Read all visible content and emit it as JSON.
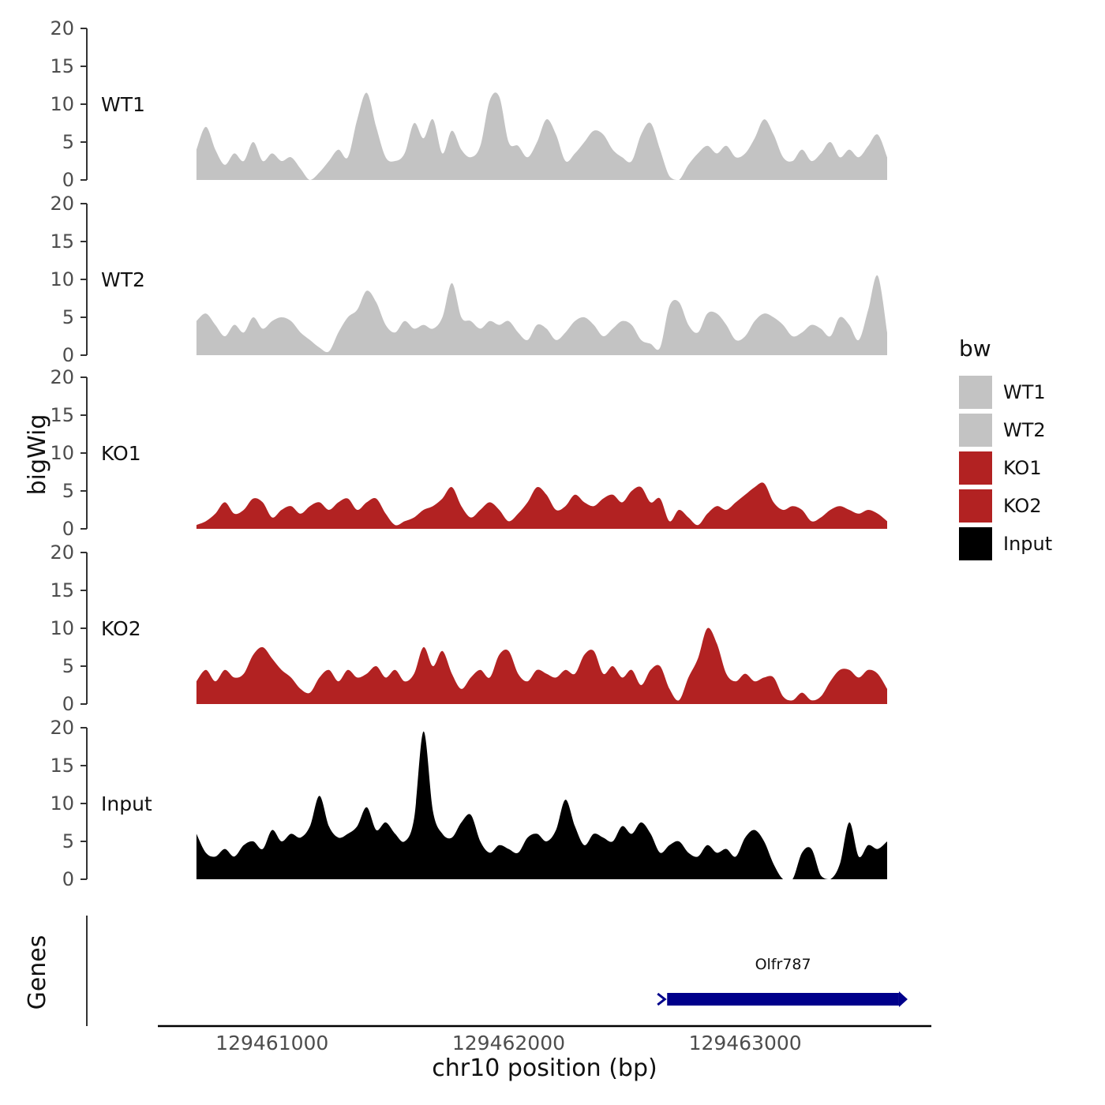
{
  "labels": {
    "bigwig": "bigWig",
    "genes": "Genes"
  },
  "axis": {
    "x_title": "chr10 position (bp)",
    "x_domain": [
      129460517,
      129463787
    ],
    "x_ticks": [
      {
        "value": 129461000,
        "label": "129461000"
      },
      {
        "value": 129462000,
        "label": "129462000"
      },
      {
        "value": 129463000,
        "label": "129463000"
      }
    ],
    "y_domain": [
      0,
      20
    ],
    "y_ticks": [
      0,
      5,
      10,
      15,
      20
    ]
  },
  "legend": {
    "title": "bw",
    "items": [
      {
        "label": "WT1",
        "color": "#c3c3c3"
      },
      {
        "label": "WT2",
        "color": "#c3c3c3"
      },
      {
        "label": "KO1",
        "color": "#b22222"
      },
      {
        "label": "KO2",
        "color": "#b22222"
      },
      {
        "label": "Input",
        "color": "#000000"
      }
    ]
  },
  "chart_data": {
    "type": "area",
    "title": "",
    "xlabel": "chr10 position (bp)",
    "ylabel": "bigWig",
    "x_start": 129460680,
    "x_step": 40,
    "x_ticks": [
      129461000,
      129462000,
      129463000
    ],
    "ylim": [
      0,
      20
    ],
    "grid": false,
    "legend_position": "right",
    "tracks": [
      {
        "name": "WT1",
        "color": "#c3c3c3",
        "values": [
          4,
          7,
          4,
          2,
          3.5,
          2.5,
          5,
          2.5,
          3.5,
          2.5,
          3,
          1.5,
          0,
          1,
          2.5,
          4,
          3,
          8,
          11.5,
          7,
          3,
          2.5,
          3.5,
          7.5,
          5.5,
          8,
          3.5,
          6.5,
          4,
          3,
          4.5,
          10.5,
          11,
          5,
          4.5,
          3,
          5,
          8,
          6,
          2.5,
          3.5,
          5,
          6.5,
          6,
          4,
          3,
          2.5,
          6,
          7.5,
          4,
          0.5,
          0,
          2,
          3.5,
          4.5,
          3.5,
          4.5,
          3,
          3.5,
          5.5,
          8,
          6,
          3,
          2.5,
          4,
          2.5,
          3.5,
          5,
          3,
          4,
          3,
          4.5,
          6,
          3
        ]
      },
      {
        "name": "WT2",
        "color": "#c3c3c3",
        "values": [
          4.5,
          5.5,
          4,
          2.5,
          4,
          3,
          5,
          3.5,
          4.5,
          5,
          4.5,
          3,
          2,
          1,
          0.5,
          3,
          5,
          6,
          8.5,
          7,
          4,
          3,
          4.5,
          3.5,
          4,
          3.5,
          5,
          9.5,
          5,
          4.5,
          3.5,
          4.5,
          4,
          4.5,
          3,
          2,
          4,
          3.5,
          2,
          3,
          4.5,
          5,
          4,
          2.5,
          3.5,
          4.5,
          4,
          2,
          1.5,
          1,
          6.5,
          7,
          4,
          3,
          5.5,
          5.5,
          4,
          2,
          2.5,
          4.5,
          5.5,
          5,
          4,
          2.5,
          3,
          4,
          3.5,
          2.5,
          5,
          4,
          2,
          6,
          10.5,
          3
        ]
      },
      {
        "name": "KO1",
        "color": "#b22222",
        "values": [
          0.5,
          1,
          2,
          3.5,
          2,
          2.5,
          4,
          3.5,
          1.5,
          2.5,
          3,
          2,
          3,
          3.5,
          2.5,
          3.5,
          4,
          2.5,
          3.5,
          4,
          2,
          0.5,
          1,
          1.5,
          2.5,
          3,
          4,
          5.5,
          3,
          1.5,
          2.5,
          3.5,
          2.5,
          1,
          2,
          3.5,
          5.5,
          4.5,
          2.5,
          3,
          4.5,
          3.5,
          3,
          4,
          4.5,
          3.5,
          5,
          5.5,
          3.5,
          4,
          1,
          2.5,
          1.5,
          0.5,
          2,
          3,
          2.5,
          3.5,
          4.5,
          5.5,
          6,
          3.5,
          2.5,
          3,
          2.5,
          1,
          1.5,
          2.5,
          3,
          2.5,
          2,
          2.5,
          2,
          1
        ]
      },
      {
        "name": "KO2",
        "color": "#b22222",
        "values": [
          3,
          4.5,
          3,
          4.5,
          3.5,
          4,
          6.5,
          7.5,
          6,
          4.5,
          3.5,
          2,
          1.5,
          3.5,
          4.5,
          3,
          4.5,
          3.5,
          4,
          5,
          3.5,
          4.5,
          3,
          4,
          7.5,
          5,
          7,
          4,
          2,
          3.5,
          4.5,
          3.5,
          6.5,
          7,
          4,
          3,
          4.5,
          4,
          3.5,
          4.5,
          4,
          6.5,
          7,
          4,
          5,
          3.5,
          4.5,
          2.5,
          4.5,
          5,
          2,
          0.5,
          3.5,
          6,
          10,
          8,
          4,
          3,
          4,
          3,
          3.5,
          3.5,
          1,
          0.5,
          1.5,
          0.5,
          1,
          3,
          4.5,
          4.5,
          3.5,
          4.5,
          4,
          2
        ]
      },
      {
        "name": "Input",
        "color": "#000000",
        "values": [
          6,
          3.5,
          3,
          4,
          3,
          4.5,
          5,
          4,
          6.5,
          5,
          6,
          5.5,
          7,
          11,
          7,
          5.5,
          6,
          7,
          9.5,
          6.5,
          7.5,
          6,
          5,
          8,
          19.5,
          9,
          6,
          5.5,
          7.5,
          8.5,
          5,
          3.5,
          4.5,
          4,
          3.5,
          5.5,
          6,
          5,
          6.5,
          10.5,
          7,
          4.5,
          6,
          5.5,
          5,
          7,
          6,
          7.5,
          6,
          3.5,
          4.5,
          5,
          3.5,
          3,
          4.5,
          3.5,
          4,
          3,
          5.5,
          6.5,
          5,
          2,
          0,
          0,
          3.5,
          4,
          0.5,
          0,
          2,
          7.5,
          3,
          4.5,
          4,
          5
        ]
      }
    ],
    "gene_track": {
      "label": "Genes",
      "genes": [
        {
          "name": "Olfr787",
          "start": 129462670,
          "end": 129463650,
          "color": "#00008b"
        }
      ]
    }
  }
}
